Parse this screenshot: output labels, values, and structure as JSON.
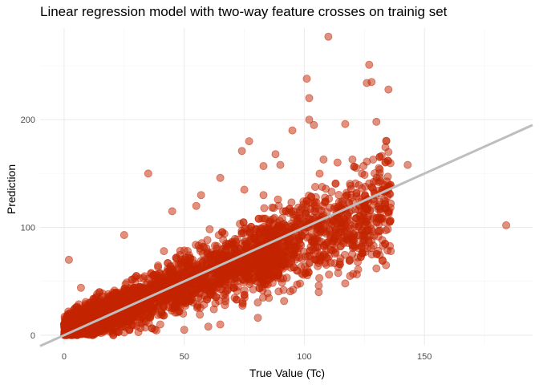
{
  "chart_data": {
    "type": "scatter",
    "title": "Linear regression model with two-way feature crosses on trainig set",
    "xlabel": "True Value (Tc)",
    "ylabel": "Prediction",
    "xlim": [
      -10,
      195
    ],
    "ylim": [
      -9,
      285
    ],
    "x_ticks": [
      0,
      50,
      100,
      150
    ],
    "y_ticks": [
      0,
      100,
      200
    ],
    "x_tick_labels": [
      "0",
      "50",
      "100",
      "150"
    ],
    "y_tick_labels": [
      "0",
      "100",
      "200"
    ],
    "grid": true,
    "legend": "none",
    "point_color": "#c42400",
    "line_color": "#bebebe",
    "fit_line": {
      "slope": 1.0,
      "intercept": 0
    },
    "cloud_description_points": {
      "dense_band": {
        "x_range": [
          0,
          140
        ],
        "y_spread_sd": 14
      },
      "outliers": [
        [
          110,
          277
        ],
        [
          127,
          251
        ],
        [
          101,
          238
        ],
        [
          128,
          235
        ],
        [
          126,
          234
        ],
        [
          135,
          228
        ],
        [
          102,
          220
        ],
        [
          102,
          200
        ],
        [
          104,
          195
        ],
        [
          117,
          196
        ],
        [
          130,
          198
        ],
        [
          135,
          170
        ],
        [
          108,
          163
        ],
        [
          120,
          163
        ],
        [
          124,
          150
        ],
        [
          131,
          155
        ],
        [
          35,
          150
        ],
        [
          77,
          180
        ],
        [
          74,
          171
        ],
        [
          88,
          168
        ],
        [
          95,
          190
        ],
        [
          143,
          158
        ],
        [
          184,
          102
        ],
        [
          83,
          130
        ],
        [
          83,
          157
        ],
        [
          90,
          158
        ],
        [
          65,
          146
        ],
        [
          75,
          135
        ],
        [
          57,
          130
        ],
        [
          128,
          88
        ],
        [
          130,
          62
        ],
        [
          119,
          70
        ],
        [
          119,
          55
        ],
        [
          117,
          48
        ],
        [
          134,
          65
        ],
        [
          136,
          78
        ],
        [
          97,
          47
        ],
        [
          106,
          40
        ],
        [
          106,
          46
        ],
        [
          88,
          63
        ],
        [
          55,
          120
        ],
        [
          45,
          115
        ],
        [
          25,
          93
        ],
        [
          2,
          70
        ],
        [
          40,
          10
        ],
        [
          50,
          5
        ],
        [
          52,
          38
        ],
        [
          60,
          8
        ],
        [
          65,
          10
        ],
        [
          33,
          53
        ],
        [
          7,
          44
        ]
      ]
    }
  }
}
